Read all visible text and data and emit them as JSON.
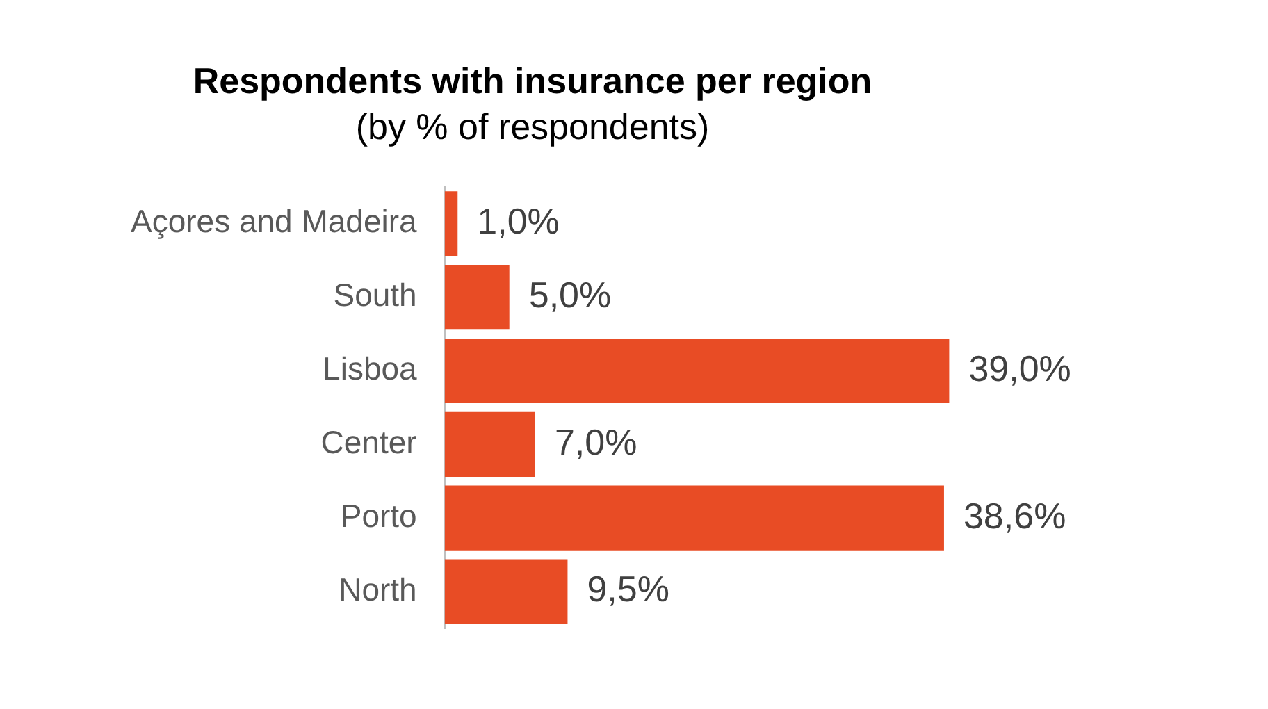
{
  "chart_data": {
    "type": "bar",
    "orientation": "horizontal",
    "title": "Respondents with insurance per region",
    "subtitle": "(by % of respondents)",
    "categories": [
      "Açores and Madeira",
      "South",
      "Lisboa",
      "Center",
      "Porto",
      "North"
    ],
    "values": [
      1.0,
      5.0,
      39.0,
      7.0,
      38.6,
      9.5
    ],
    "value_labels": [
      "1,0%",
      "5,0%",
      "39,0%",
      "7,0%",
      "38,6%",
      "9,5%"
    ],
    "color": "#e84c25"
  }
}
